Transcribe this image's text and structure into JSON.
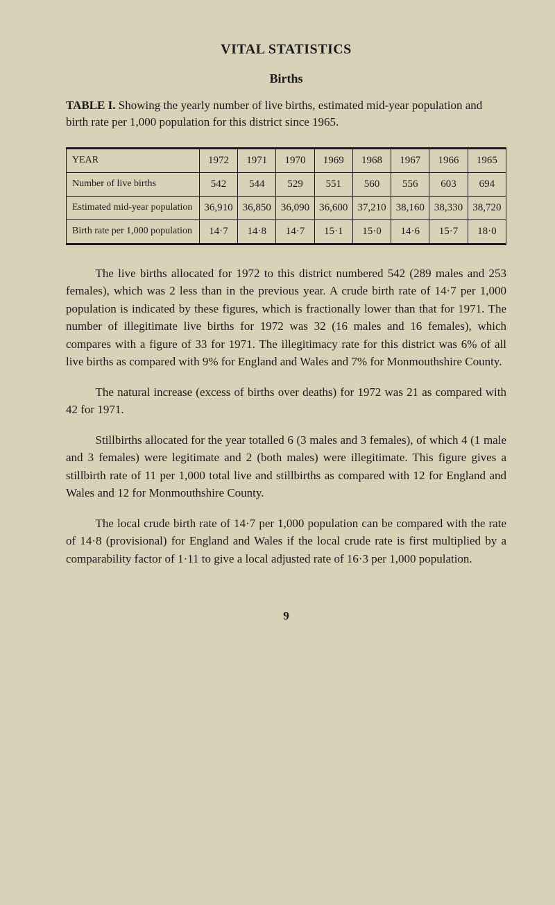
{
  "heading": "VITAL STATISTICS",
  "subheading": "Births",
  "table_label": "TABLE I.",
  "table_caption": "Showing the yearly number of live births, estimated mid-year population and birth rate per 1,000 population for this district since 1965.",
  "table": {
    "header_label": "YEAR",
    "years": [
      "1972",
      "1971",
      "1970",
      "1969",
      "1968",
      "1967",
      "1966",
      "1965"
    ],
    "rows": [
      {
        "label": "Number of live births",
        "values": [
          "542",
          "544",
          "529",
          "551",
          "560",
          "556",
          "603",
          "694"
        ]
      },
      {
        "label": "Estimated mid-year population",
        "values": [
          "36,910",
          "36,850",
          "36,090",
          "36,600",
          "37,210",
          "38,160",
          "38,330",
          "38,720"
        ]
      },
      {
        "label": "Birth rate per 1,000 population",
        "values": [
          "14·7",
          "14·8",
          "14·7",
          "15·1",
          "15·0",
          "14·6",
          "15·7",
          "18·0"
        ]
      }
    ]
  },
  "paragraphs": [
    "The live births allocated for 1972 to this district numbered 542 (289 males and 253 females), which was 2 less than in the previous year. A crude birth rate of 14·7 per 1,000 population is indicated by these figures, which is fractionally lower than that for 1971. The number of illegitimate live births for 1972 was 32 (16 males and 16 females), which compares with a figure of 33 for 1971. The illegitimacy rate for this district was 6% of all live births as compared with 9% for England and Wales and 7% for Monmouthshire County.",
    "The natural increase (excess of births over deaths) for 1972 was 21 as compared with 42 for 1971.",
    "Stillbirths allocated for the year totalled 6 (3 males and 3 females), of which 4 (1 male and 3 females) were legitimate and 2 (both males) were illegitimate. This figure gives a stillbirth rate of 11 per 1,000 total live and stillbirths as compared with 12 for England and Wales and 12 for Monmouthshire County.",
    "The local crude birth rate of 14·7 per 1,000 population can be compared with the rate of 14·8 (provisional) for England and Wales if the local crude rate is first multiplied by a comparability factor of 1·11 to give a local adjusted rate of 16·3 per 1,000 population."
  ],
  "page_number": "9",
  "colors": {
    "background": "#d9d2b8",
    "text": "#1a1a1a",
    "border": "#1a1a1a"
  },
  "typography": {
    "body_fontsize": 17,
    "heading_fontsize": 20,
    "subheading_fontsize": 18,
    "table_fontsize": 15,
    "font_family": "Georgia, Times New Roman, serif"
  }
}
